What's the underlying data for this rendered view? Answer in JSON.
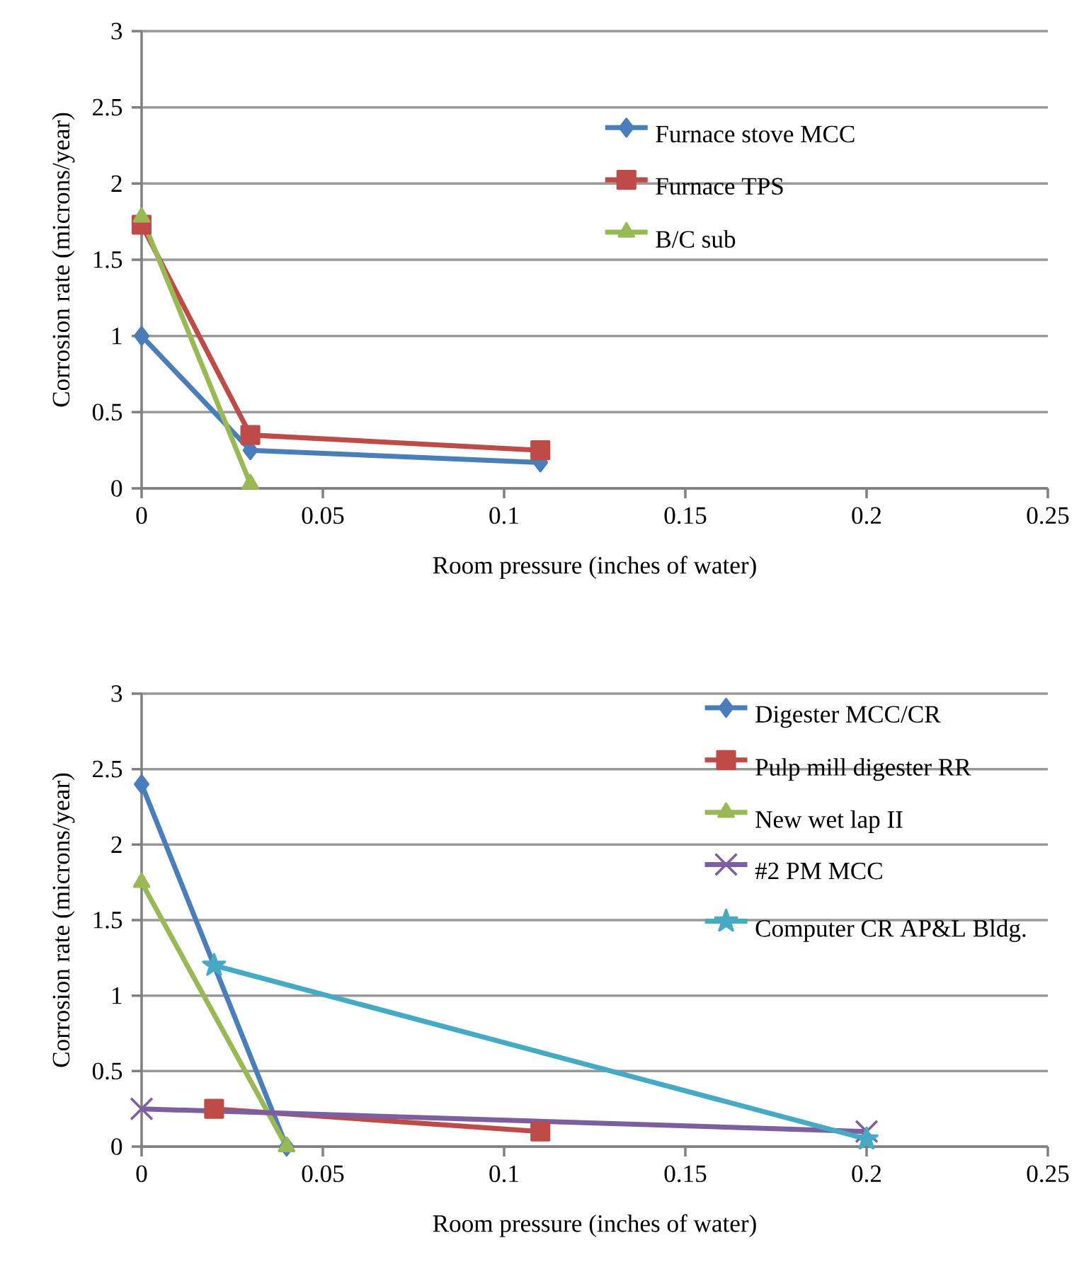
{
  "chart_data": [
    {
      "type": "line",
      "xlabel": "Room pressure (inches of water)",
      "ylabel": "Corrosion rate (microns/year)",
      "xlim": [
        0,
        0.25
      ],
      "xticks": [
        0,
        0.05,
        0.1,
        0.15,
        0.2,
        0.25
      ],
      "ylim": [
        0,
        3
      ],
      "yticks": [
        0,
        0.5,
        1,
        1.5,
        2,
        2.5,
        3
      ],
      "grid": "y",
      "legend": "top right",
      "series": [
        {
          "name": "Furnace stove MCC",
          "color": "#4a7ebb",
          "marker": "diamond",
          "x": [
            0,
            0.03,
            0.11
          ],
          "values": [
            1,
            0.25,
            0.17
          ]
        },
        {
          "name": "Furnace TPS",
          "color": "#be4b48",
          "marker": "square",
          "x": [
            0,
            0.03,
            0.11
          ],
          "values": [
            1.73,
            0.35,
            0.25
          ]
        },
        {
          "name": "B/C sub",
          "color": "#98b954",
          "marker": "triangle",
          "x": [
            0,
            0.03
          ],
          "values": [
            1.78,
            0.03
          ]
        }
      ]
    },
    {
      "type": "line",
      "xlabel": "Room pressure (inches of water)",
      "ylabel": "Corrosion rate (microns/year)",
      "xlim": [
        0,
        0.25
      ],
      "xticks": [
        0,
        0.05,
        0.1,
        0.15,
        0.2,
        0.25
      ],
      "ylim": [
        0,
        3
      ],
      "yticks": [
        0,
        0.5,
        1,
        1.5,
        2,
        2.5,
        3
      ],
      "grid": "y",
      "legend": "top right",
      "series": [
        {
          "name": "Digester MCC/CR",
          "color": "#4a7ebb",
          "marker": "diamond",
          "x": [
            0,
            0.04
          ],
          "values": [
            2.4,
            0
          ]
        },
        {
          "name": "Pulp mill digester RR",
          "color": "#be4b48",
          "marker": "square",
          "x": [
            0.02,
            0.11
          ],
          "values": [
            0.25,
            0.1
          ]
        },
        {
          "name": "New wet lap II",
          "color": "#98b954",
          "marker": "triangle",
          "x": [
            0,
            0.04
          ],
          "values": [
            1.75,
            0
          ]
        },
        {
          "name": "#2 PM MCC",
          "color": "#7d5fa0",
          "marker": "cross",
          "x": [
            0,
            0.2
          ],
          "values": [
            0.25,
            0.1
          ]
        },
        {
          "name": "Computer CR AP&L Bldg.",
          "color": "#46aac5",
          "marker": "star",
          "x": [
            0.02,
            0.2
          ],
          "values": [
            1.2,
            0.05
          ]
        }
      ]
    }
  ]
}
